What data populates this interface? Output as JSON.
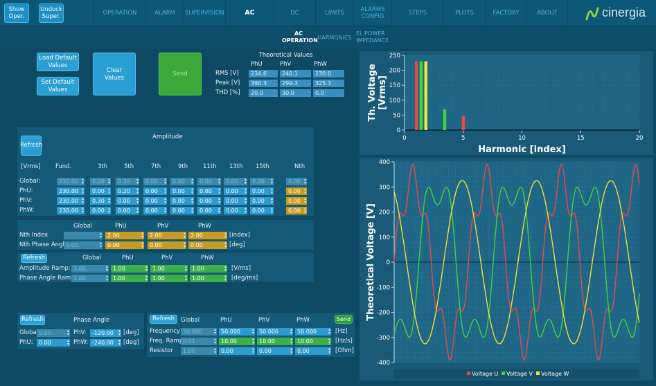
{
  "nav": {
    "show_oper": "Show\nOper.",
    "undock_super": "Undock\nSuper.",
    "tabs": [
      "OPERATION",
      "ALARM",
      "SUPERVISION",
      "AC",
      "DC",
      "LIMITS",
      "ALARMS\nCONFIG",
      "STEPS",
      "PLOTS",
      "FACTORY",
      "ABOUT"
    ],
    "active_tab": "AC",
    "brand": "cinergia"
  },
  "subnav": {
    "tabs": [
      "AC\nOPERATION",
      "HARMONICS",
      "EL.POWER\nIMPEDANCE"
    ]
  },
  "top": {
    "load_default": "Load Default\nValues",
    "set_default": "Set Default\nValues",
    "clear": "Clear\nValues",
    "send": "Send",
    "theo_title": "Theoretical Values",
    "theo_cols": [
      "PhU",
      "PhV",
      "PhW"
    ],
    "theo_rows": [
      {
        "label": "RMS [V]",
        "vals": [
          "234.6",
          "240.1",
          "230.0"
        ]
      },
      {
        "label": "Peak [V]",
        "vals": [
          "390.3",
          "299.3",
          "325.3"
        ]
      },
      {
        "label": "THD [%]",
        "vals": [
          "20.0",
          "30.0",
          "0.0"
        ]
      }
    ]
  },
  "amp": {
    "refresh": "Refresh",
    "title": "Amplitude",
    "unit": "[Vrms]",
    "cols": [
      "Fund.",
      "3th",
      "5th",
      "7th",
      "9th",
      "11th",
      "13th",
      "15th",
      "Nth"
    ],
    "rows": [
      {
        "label": "Global:",
        "vals": [
          "230.00",
          "0.00",
          "0.30",
          "0.00",
          "0.00",
          "0.00",
          "0.00",
          "0.00",
          "0.00"
        ]
      },
      {
        "label": "PhU:",
        "vals": [
          "230.00",
          "0.00",
          "0.20",
          "0.00",
          "0.00",
          "0.00",
          "0.00",
          "0.00",
          "0.00"
        ]
      },
      {
        "label": "PhV:",
        "vals": [
          "230.00",
          "0.30",
          "0.00",
          "0.00",
          "0.00",
          "0.00",
          "0.00",
          "0.00",
          "0.00"
        ]
      },
      {
        "label": "PhW:",
        "vals": [
          "230.00",
          "0.00",
          "0.00",
          "0.00",
          "0.00",
          "0.00",
          "0.00",
          "0.00",
          "0.00"
        ]
      }
    ]
  },
  "nth": {
    "cols": [
      "Global",
      "PhU",
      "PhV",
      "PhW"
    ],
    "index_label": "Nth Index",
    "index_vals": [
      "",
      "2.00",
      "2.00",
      "2.00"
    ],
    "index_unit": "[index]",
    "phase_label": "Nth Phase Angle",
    "phase_vals": [
      "0.00",
      "0.00",
      "0.00",
      "0.00"
    ],
    "phase_unit": "[deg]"
  },
  "ramp": {
    "refresh": "Refresh",
    "cols": [
      "Global",
      "PhU",
      "PhV",
      "PhW"
    ],
    "amp_label": "Amplitude Ramp:",
    "amp_vals": [
      "1.00",
      "1.00",
      "1.00",
      "1.00"
    ],
    "amp_unit": "[V/ms]",
    "phase_label": "Phase Angle Ramp:",
    "phase_vals": [
      "1.00",
      "1.00",
      "1.00",
      "1.00"
    ],
    "phase_unit": "[deg/ms]"
  },
  "phase": {
    "refresh": "Refresh",
    "title": "Phase Angle",
    "global_label": "Global:",
    "global_val": "0.00",
    "phu_label": "PhU:",
    "phu_val": "0.00",
    "phv_label": "PhV:",
    "phv_val": "-120.00",
    "phw_label": "PhW:",
    "phw_val": "-240.00",
    "unit": "[deg]"
  },
  "freq": {
    "refresh": "Refresh",
    "send": "Send",
    "cols": [
      "Global",
      "PhU",
      "PhV",
      "PhW"
    ],
    "rows": [
      {
        "label": "Frequency",
        "vals": [
          "50.000",
          "50.000",
          "50.000",
          "50.000"
        ],
        "unit": "[Hz]"
      },
      {
        "label": "Freq. Ramp",
        "vals": [
          "0.01",
          "10.00",
          "10.00",
          "10.00"
        ],
        "unit": "[Hz/s]"
      },
      {
        "label": "Resistor",
        "vals": [
          "1.00",
          "0.00",
          "0.00",
          "0.00"
        ],
        "unit": "[Ohm]"
      }
    ]
  },
  "colors": {
    "u": "#e84a4a",
    "v": "#3fd43f",
    "w": "#f2df3a",
    "accent": "#1d8fc4"
  },
  "chart_data": [
    {
      "type": "bar",
      "xlabel": "Harmonic [index]",
      "ylabel": "Th. Voltage\n[Vrms]",
      "xlim": [
        0,
        20
      ],
      "ylim": [
        0,
        250
      ],
      "xticks": [
        0,
        5,
        10,
        15,
        20
      ],
      "yticks": [
        0,
        50,
        100,
        150,
        200,
        250
      ],
      "series": [
        {
          "name": "Voltage U",
          "color": "#e84a4a",
          "points": [
            [
              1,
              230
            ],
            [
              5,
              46
            ]
          ]
        },
        {
          "name": "Voltage V",
          "color": "#3fd43f",
          "points": [
            [
              1.4,
              230
            ],
            [
              3.4,
              69
            ]
          ]
        },
        {
          "name": "Voltage W",
          "color": "#f2df3a",
          "points": [
            [
              1.8,
              230
            ]
          ]
        }
      ]
    },
    {
      "type": "line",
      "xlabel": "",
      "ylabel": "Theoretical Voltage [V]",
      "ylim": [
        -400,
        400
      ],
      "yticks": [
        -400,
        -300,
        -200,
        -100,
        0,
        100,
        200,
        300,
        400
      ],
      "cycles": 3.3,
      "series": [
        {
          "name": "Voltage U",
          "color": "#e84a4a",
          "fund": 325.3,
          "h": [
            [
              5,
              0.2,
              0
            ]
          ],
          "phase": 0
        },
        {
          "name": "Voltage V",
          "color": "#3fd43f",
          "fund": 325.3,
          "h": [
            [
              3,
              0.3,
              0
            ]
          ],
          "phase": -120
        },
        {
          "name": "Voltage W",
          "color": "#f2df3a",
          "fund": 325.3,
          "h": [],
          "phase": -240
        }
      ],
      "legend": "bottom"
    }
  ]
}
